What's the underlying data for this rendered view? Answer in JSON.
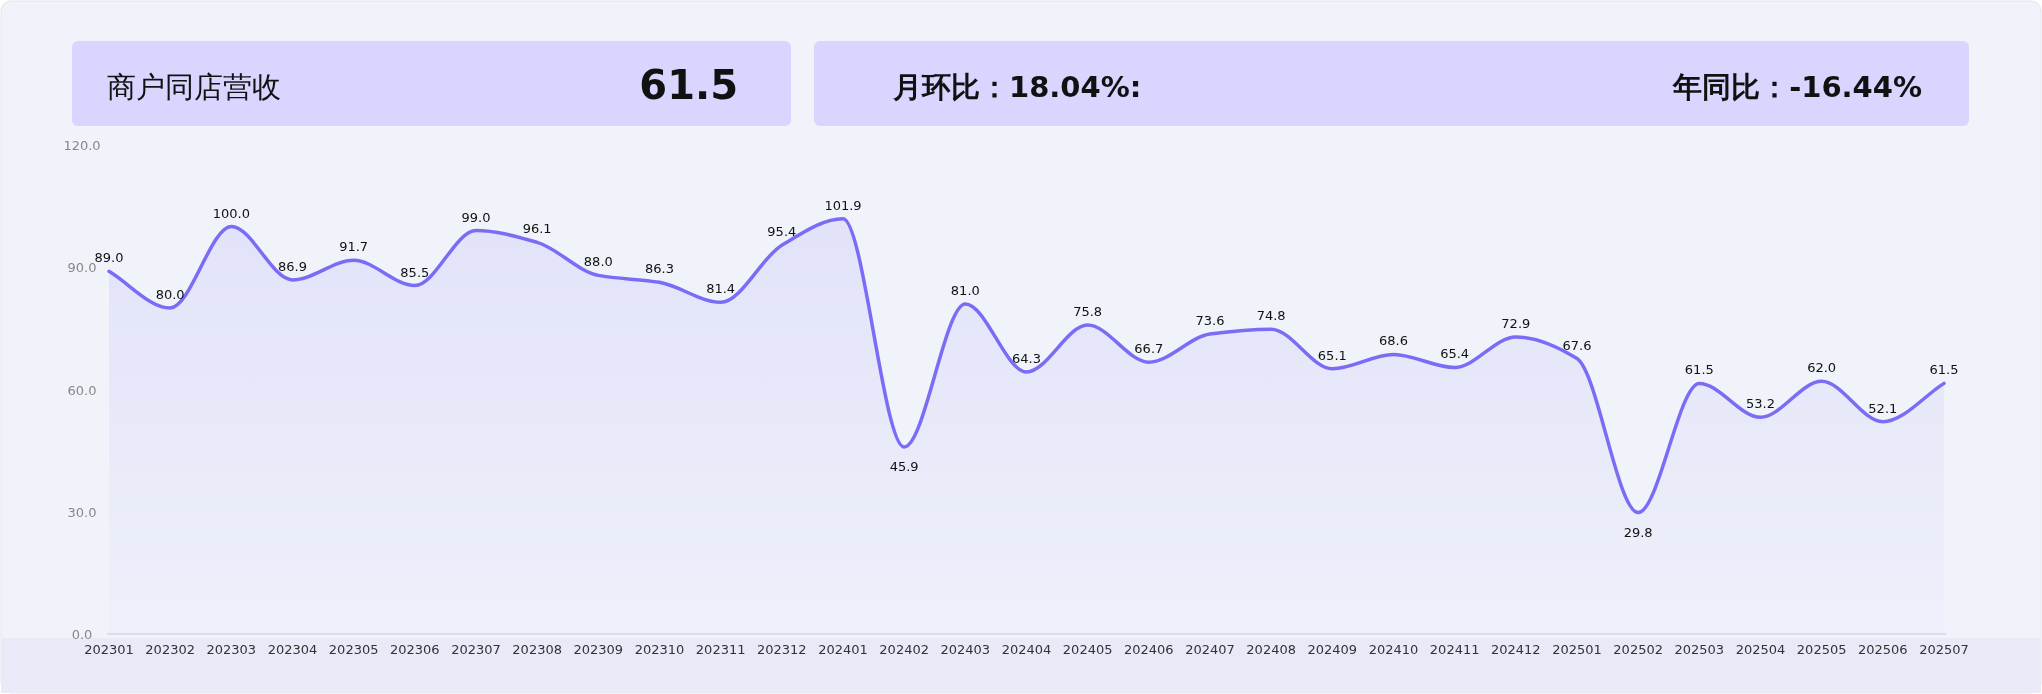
{
  "chart_data": {
    "type": "area",
    "title": "商户同店营收",
    "annotations": [
      "61.5",
      "月环比：18.04%:",
      "年同比：-16.44%"
    ],
    "categories": [
      "202301",
      "202302",
      "202303",
      "202304",
      "202305",
      "202306",
      "202307",
      "202308",
      "202309",
      "202310",
      "202311",
      "202312",
      "202401",
      "202402",
      "202403",
      "202404",
      "202405",
      "202406",
      "202407",
      "202408",
      "202409",
      "202410",
      "202411",
      "202412",
      "202501",
      "202502",
      "202503",
      "202504",
      "202505",
      "202506",
      "202507"
    ],
    "values": [
      89.0,
      80.0,
      100.0,
      86.9,
      91.7,
      85.5,
      99.0,
      96.1,
      88.0,
      86.3,
      81.4,
      95.4,
      101.9,
      45.9,
      81.0,
      64.3,
      75.8,
      66.7,
      73.6,
      74.8,
      65.1,
      68.6,
      65.4,
      72.9,
      67.6,
      29.8,
      61.5,
      53.2,
      62.0,
      52.1,
      61.5
    ],
    "value_labels": [
      "89.0",
      "80.0",
      "100.0",
      "86.9",
      "91.7",
      "85.5",
      "99.0",
      "96.1",
      "88.0",
      "86.3",
      "81.4",
      "95.4",
      "101.9",
      "45.9",
      "81.0",
      "64.3",
      "75.8",
      "66.7",
      "73.6",
      "74.8",
      "65.1",
      "68.6",
      "65.4",
      "72.9",
      "67.6",
      "29.8",
      "61.5",
      "53.2",
      "62.0",
      "52.1",
      "61.5"
    ],
    "color": "#7b6cf6",
    "ylim": [
      0,
      120
    ],
    "yticks": [
      {
        "value": 0,
        "label": "0.0"
      },
      {
        "value": 30,
        "label": "30.0"
      },
      {
        "value": 60,
        "label": "60.0"
      },
      {
        "value": 90,
        "label": "90.0"
      },
      {
        "value": 120,
        "label": "120.0"
      }
    ],
    "marker": "none",
    "line_style": "solid",
    "grid": false
  }
}
